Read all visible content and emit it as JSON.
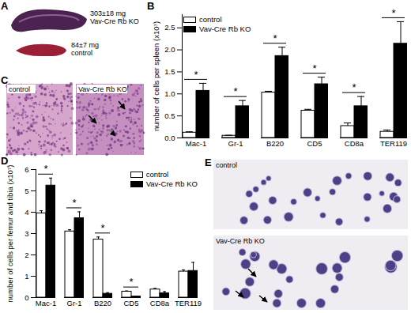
{
  "chart_data": [
    {
      "type": "bar",
      "title": "B",
      "ylabel": "number of cells per spleen (x10⁷)",
      "categories": [
        "Mac-1",
        "Gr-1",
        "B220",
        "CD5",
        "CD8a",
        "TER119"
      ],
      "series": [
        {
          "name": "control",
          "color": "#ffffff",
          "values": [
            0.12,
            0.05,
            1.03,
            0.62,
            0.27,
            0.14
          ],
          "errors": [
            0.02,
            0.01,
            0.03,
            0.03,
            0.07,
            0.04
          ]
        },
        {
          "name": "Vav-Cre Rb KO",
          "color": "#000000",
          "values": [
            1.07,
            0.72,
            1.86,
            1.22,
            0.72,
            2.14
          ],
          "errors": [
            0.17,
            0.13,
            0.2,
            0.16,
            0.22,
            0.5
          ]
        }
      ],
      "significance": [
        "*",
        "*",
        "*",
        "*",
        "*",
        "*"
      ],
      "ylim": [
        0,
        2.8
      ],
      "yticks": [
        {
          "value": 0,
          "label": "0.0"
        },
        {
          "value": 0.5,
          "label": "0.5"
        },
        {
          "value": 1,
          "label": "1.0"
        },
        {
          "value": 1.5,
          "label": "1.5"
        },
        {
          "value": 2,
          "label": "2.0"
        },
        {
          "value": 2.5,
          "label": "2.5"
        }
      ],
      "legend": "top-left"
    },
    {
      "type": "bar",
      "title": "D",
      "ylabel": "number of cells per femur and tibia (x10⁷)",
      "categories": [
        "Mac-1",
        "Gr-1",
        "B220",
        "CD5",
        "CD8a",
        "TER119"
      ],
      "series": [
        {
          "name": "control",
          "color": "#ffffff",
          "values": [
            3.95,
            3.1,
            2.72,
            0.28,
            0.38,
            1.22
          ],
          "errors": [
            0.12,
            0.08,
            0.12,
            0.03,
            0.05,
            0.08
          ]
        },
        {
          "name": "Vav-Cre Rb KO",
          "color": "#000000",
          "values": [
            5.25,
            3.72,
            0.18,
            0.05,
            0.2,
            1.25
          ],
          "errors": [
            0.35,
            0.3,
            0.05,
            0.02,
            0.08,
            0.4
          ]
        }
      ],
      "significance": [
        "*",
        "*",
        "*",
        "*",
        null,
        null
      ],
      "ylim": [
        0,
        6
      ],
      "yticks": [
        0,
        1,
        2,
        3,
        4,
        5,
        6
      ],
      "legend": "top-right"
    }
  ],
  "panels": [
    {
      "label": "A",
      "texts": [
        [
          "303±18 mg",
          "Vav-Cre Rb KO"
        ],
        [
          "84±7 mg",
          "control"
        ]
      ]
    },
    {
      "label": "C",
      "texts": [
        "control",
        "Vav-Cre Rb KO"
      ]
    },
    {
      "label": "E",
      "texts": [
        "control",
        "Vav-Cre Rb KO"
      ]
    }
  ]
}
